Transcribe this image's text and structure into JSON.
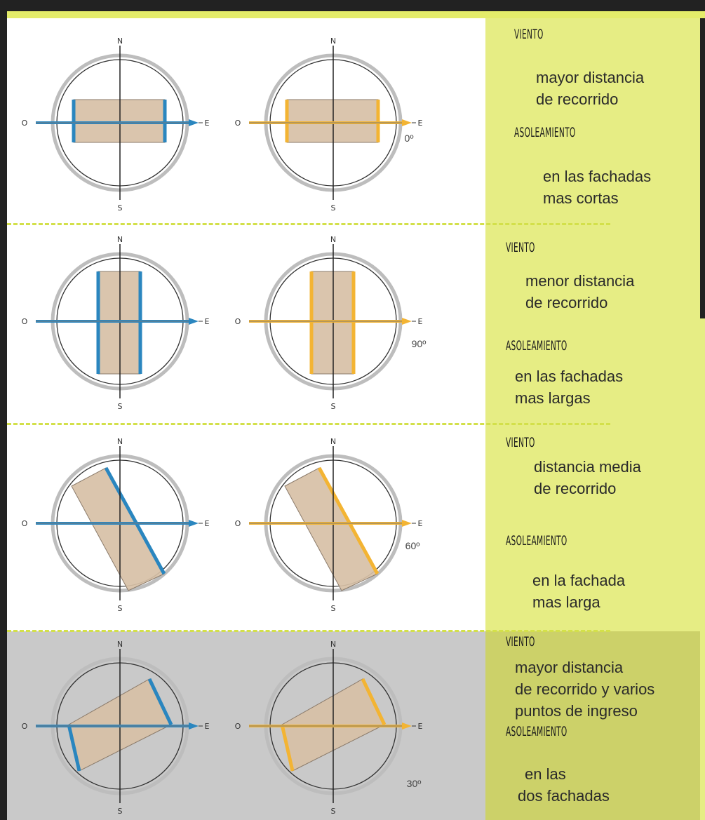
{
  "colors": {
    "wind": "#2a86bf",
    "sun": "#f3b433",
    "building": "#d7c0a6",
    "panel": "#e6ed84",
    "panel_dark": "#ccd169"
  },
  "compass": {
    "north": "N",
    "south": "S",
    "east": "E",
    "west": "O"
  },
  "rows": [
    {
      "angle": "0º",
      "wind_heading": "VIENTO",
      "wind_text": [
        "mayor distancia",
        "de recorrido"
      ],
      "sun_heading": "ASOLEAMIENTO",
      "sun_text": [
        "en las fachadas",
        "mas cortas"
      ]
    },
    {
      "angle": "90º",
      "wind_heading": "VIENTO",
      "wind_text": [
        "menor distancia",
        "de recorrido"
      ],
      "sun_heading": "ASOLEAMIENTO",
      "sun_text": [
        "en las fachadas",
        "mas largas"
      ]
    },
    {
      "angle": "60º",
      "wind_heading": "VIENTO",
      "wind_text": [
        "distancia media",
        "de recorrido"
      ],
      "sun_heading": "ASOLEAMIENTO",
      "sun_text": [
        "en la fachada",
        "mas larga"
      ]
    },
    {
      "angle": "30º",
      "wind_heading": "VIENTO",
      "wind_text": [
        "mayor distancia",
        "de recorrido y varios",
        "puntos de ingreso"
      ],
      "sun_heading": "ASOLEAMIENTO",
      "sun_text": [
        "en las",
        "dos fachadas"
      ]
    }
  ]
}
